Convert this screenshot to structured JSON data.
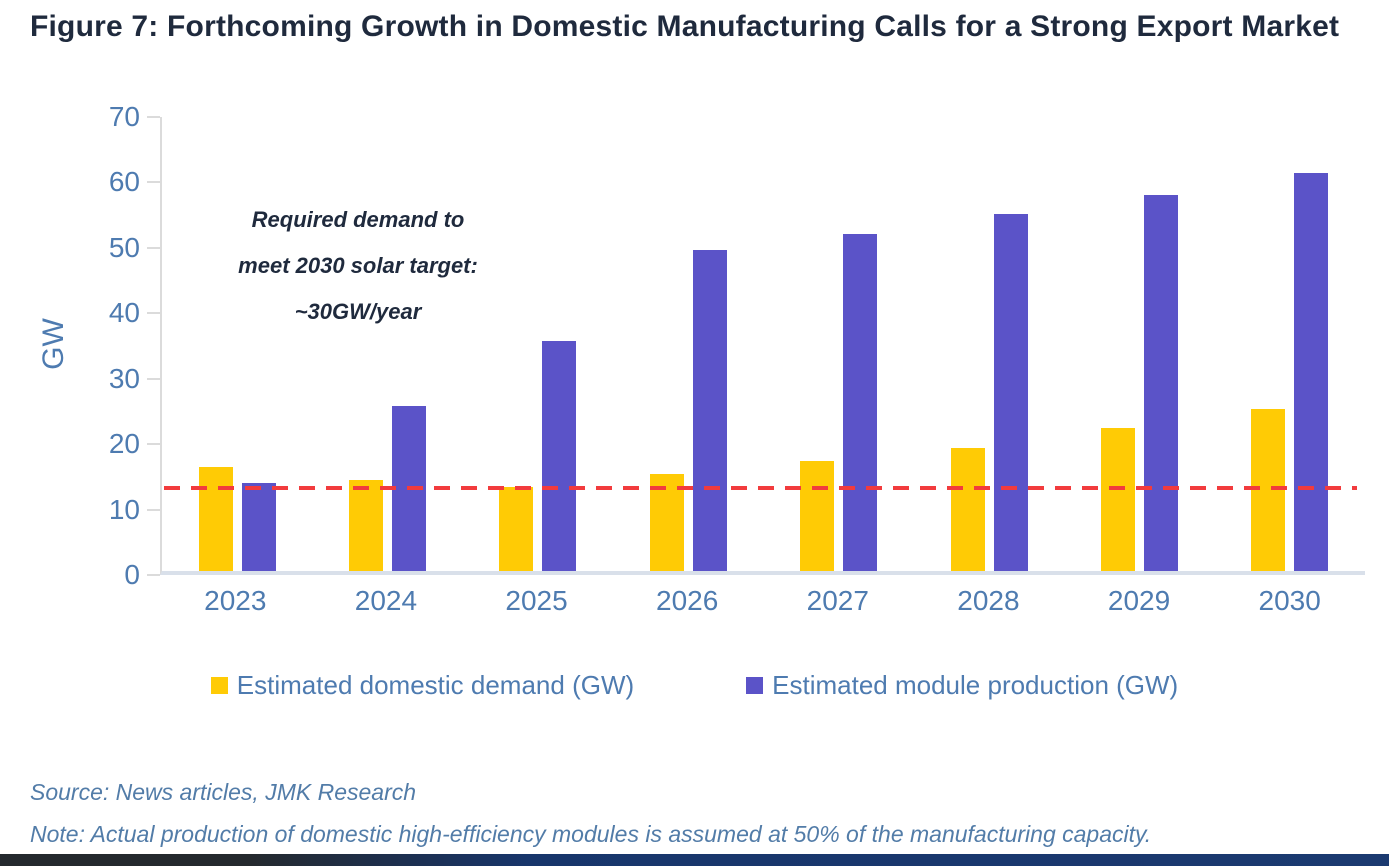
{
  "figure": {
    "title": "Figure 7: Forthcoming Growth in Domestic Manufacturing Calls for a Strong Export Market",
    "source": "Source: News articles, JMK Research",
    "note": "Note: Actual production of domestic high-efficiency modules is assumed at 50% of the manufacturing capacity."
  },
  "annotation": {
    "line1": "Required demand to",
    "line2": "meet 2030 solar target:",
    "line3": "~30GW/year"
  },
  "chart_data": {
    "type": "bar",
    "categories": [
      "2023",
      "2024",
      "2025",
      "2026",
      "2027",
      "2028",
      "2029",
      "2030"
    ],
    "series": [
      {
        "name": "Estimated domestic demand (GW)",
        "color": "#FFCB05",
        "values": [
          16,
          14,
          13,
          15,
          17,
          19,
          22,
          25
        ]
      },
      {
        "name": "Estimated module production (GW)",
        "color": "#5B53C8",
        "values": [
          13.5,
          25.5,
          35.5,
          49.5,
          52,
          55,
          58,
          61.3
        ]
      }
    ],
    "title": "",
    "xlabel": "",
    "ylabel": "GW",
    "ylim": [
      0,
      70
    ],
    "yticks": [
      0,
      10,
      20,
      30,
      40,
      50,
      60,
      70
    ],
    "grid": false,
    "legend_position": "bottom",
    "reference_line": {
      "value": 12.7,
      "color": "#F23B3D",
      "style": "dashed",
      "label": ""
    }
  },
  "colors": {
    "title_navy": "#1F2A3D",
    "axis_text_blue": "#4E7BB0",
    "source_text_blue": "#527CA8",
    "demand_yellow": "#FFCB05",
    "production_purple": "#5B53C8",
    "reference_red": "#F23B3D",
    "axis_gray": "#DBDBDB",
    "baseline_gray": "#D9E0EA"
  }
}
